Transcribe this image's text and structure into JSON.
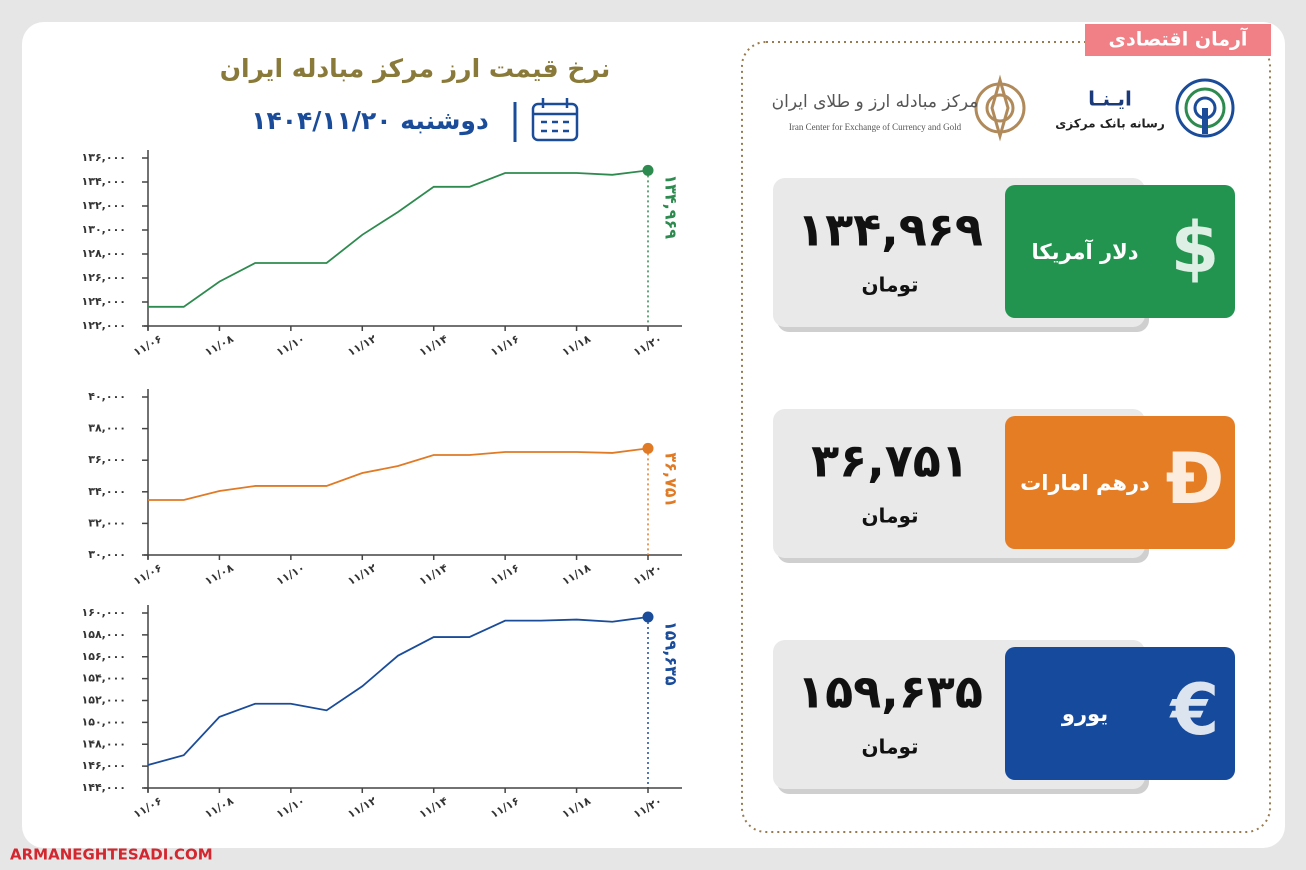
{
  "header": {
    "title": "نرخ قیمت ارز مرکز مبادله ایران",
    "date": "دوشنبه ۱۴۰۴/۱۱/۲۰"
  },
  "branding": {
    "ribbon": "آرمان اقتصادی",
    "watermark": "ARMANEGHTESADI.COM",
    "ina_name": "ایـنـا",
    "ina_sub": "رسانه بانک مرکزی",
    "center_name": "مرکز مبادله ارز و طلای ایران",
    "center_en": "Iran Center for Exchange of Currency and Gold"
  },
  "chart_data": [
    {
      "type": "line",
      "color": "#2e8b4f",
      "categories": [
        "۱۱/۰۶",
        null,
        "۱۱/۰۸",
        null,
        "۱۱/۱۰",
        null,
        "۱۱/۱۲",
        null,
        "۱۱/۱۴",
        null,
        "۱۱/۱۶",
        null,
        "۱۱/۱۸",
        null,
        "۱۱/۲۰"
      ],
      "values": [
        123600,
        123600,
        125700,
        127250,
        127250,
        127250,
        129600,
        131500,
        133600,
        133600,
        134750,
        134750,
        134750,
        134600,
        134969
      ],
      "value_labels": [
        null,
        null,
        null,
        null,
        null,
        null,
        null,
        null,
        null,
        null,
        null,
        null,
        null,
        null,
        "۱۳۴,۹۶۹"
      ],
      "ylim": [
        122000,
        136000
      ],
      "yticks": [
        {
          "value": 122000,
          "label": "۱۲۲,۰۰۰"
        },
        {
          "value": 124000,
          "label": "۱۲۴,۰۰۰"
        },
        {
          "value": 126000,
          "label": "۱۲۶,۰۰۰"
        },
        {
          "value": 128000,
          "label": "۱۲۸,۰۰۰"
        },
        {
          "value": 130000,
          "label": "۱۳۰,۰۰۰"
        },
        {
          "value": 132000,
          "label": "۱۳۲,۰۰۰"
        },
        {
          "value": 134000,
          "label": "۱۳۴,۰۰۰"
        },
        {
          "value": 136000,
          "label": "۱۳۶,۰۰۰"
        }
      ]
    },
    {
      "type": "line",
      "color": "#e07a25",
      "categories": [
        "۱۱/۰۶",
        null,
        "۱۱/۰۸",
        null,
        "۱۱/۱۰",
        null,
        "۱۱/۱۲",
        null,
        "۱۱/۱۴",
        null,
        "۱۱/۱۶",
        null,
        "۱۱/۱۸",
        null,
        "۱۱/۲۰"
      ],
      "values": [
        33480,
        33480,
        34050,
        34370,
        34370,
        34370,
        35190,
        35630,
        36330,
        36330,
        36520,
        36520,
        36520,
        36460,
        36751
      ],
      "value_labels": [
        null,
        null,
        null,
        null,
        null,
        null,
        null,
        null,
        null,
        null,
        null,
        null,
        null,
        null,
        "۳۶,۷۵۱"
      ],
      "ylim": [
        30000,
        40000
      ],
      "yticks": [
        {
          "value": 30000,
          "label": "۳۰,۰۰۰"
        },
        {
          "value": 32000,
          "label": "۳۲,۰۰۰"
        },
        {
          "value": 34000,
          "label": "۳۴,۰۰۰"
        },
        {
          "value": 36000,
          "label": "۳۶,۰۰۰"
        },
        {
          "value": 38000,
          "label": "۳۸,۰۰۰"
        },
        {
          "value": 40000,
          "label": "۴۰,۰۰۰"
        }
      ]
    },
    {
      "type": "line",
      "color": "#1a4c9a",
      "categories": [
        "۱۱/۰۶",
        null,
        "۱۱/۰۸",
        null,
        "۱۱/۱۰",
        null,
        "۱۱/۱۲",
        null,
        "۱۱/۱۴",
        null,
        "۱۱/۱۶",
        null,
        "۱۱/۱۸",
        null,
        "۱۱/۲۰"
      ],
      "values": [
        146100,
        147000,
        150500,
        151700,
        151700,
        151100,
        153300,
        156100,
        157800,
        157800,
        159300,
        159300,
        159400,
        159200,
        159635
      ],
      "value_labels": [
        null,
        null,
        null,
        null,
        null,
        null,
        null,
        null,
        null,
        null,
        null,
        null,
        null,
        null,
        "۱۵۹,۶۳۵"
      ],
      "ylim": [
        144000,
        160000
      ],
      "yticks": [
        {
          "value": 144000,
          "label": "۱۴۴,۰۰۰"
        },
        {
          "value": 146000,
          "label": "۱۴۶,۰۰۰"
        },
        {
          "value": 148000,
          "label": "۱۴۸,۰۰۰"
        },
        {
          "value": 150000,
          "label": "۱۵۰,۰۰۰"
        },
        {
          "value": 152000,
          "label": "۱۵۲,۰۰۰"
        },
        {
          "value": 154000,
          "label": "۱۵۴,۰۰۰"
        },
        {
          "value": 156000,
          "label": "۱۵۶,۰۰۰"
        },
        {
          "value": 158000,
          "label": "۱۵۸,۰۰۰"
        },
        {
          "value": 160000,
          "label": "۱۶۰,۰۰۰"
        }
      ]
    }
  ],
  "cards": [
    {
      "name": "دلار آمریکا",
      "symbol": "$",
      "value": "۱۳۴,۹۶۹",
      "unit": "تومان",
      "color": "#23944f"
    },
    {
      "name": "درهم امارات",
      "symbol": "Đ",
      "value": "۳۶,۷۵۱",
      "unit": "تومان",
      "color": "#e57d24"
    },
    {
      "name": "یورو",
      "symbol": "€",
      "value": "۱۵۹,۶۳۵",
      "unit": "تومان",
      "color": "#164a9c"
    }
  ]
}
